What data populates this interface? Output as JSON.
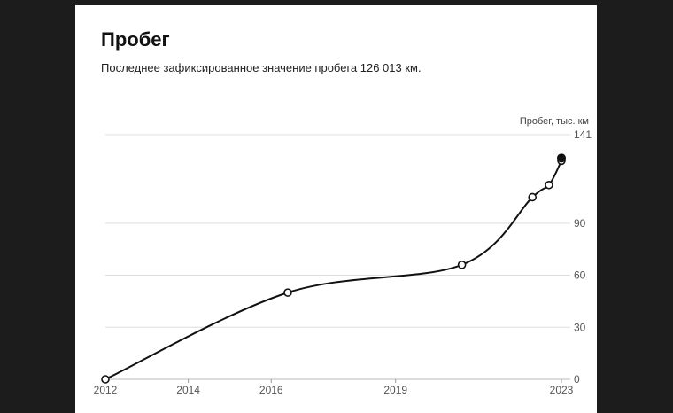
{
  "card": {
    "title": "Пробег",
    "subtitle": "Последнее зафиксированное значение пробега 126 013 км."
  },
  "chart_data": {
    "type": "line",
    "title": "Пробег",
    "xlabel": "",
    "ylabel": "Пробег, тыс. км",
    "xlim": [
      2012,
      2023
    ],
    "ylim": [
      0,
      141
    ],
    "x_ticks": [
      "2012",
      "2014",
      "2016",
      "2019",
      "2023"
    ],
    "y_ticks": [
      "0",
      "30",
      "60",
      "90",
      "141"
    ],
    "grid": true,
    "series": [
      {
        "x": [
          2012.0,
          2016.4,
          2020.6,
          2022.3,
          2022.7,
          2023.0
        ],
        "y": [
          0,
          50,
          66,
          105,
          112,
          126
        ]
      }
    ],
    "last_point": {
      "x": 2023.0,
      "y": 126.013
    },
    "colors": {
      "line": "#111111",
      "grid": "#dddddd",
      "marker_fill": "#ffffff"
    }
  }
}
